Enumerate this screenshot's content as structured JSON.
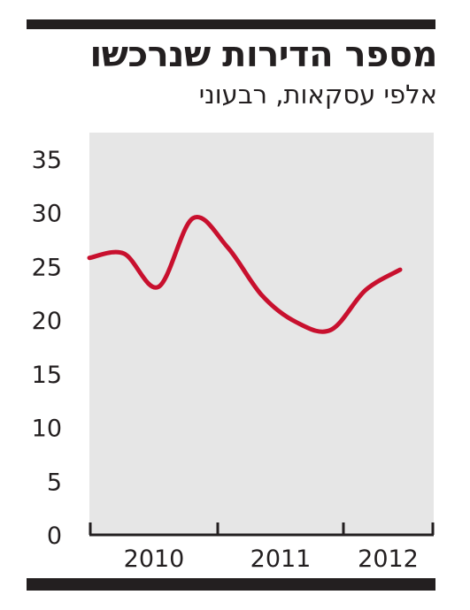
{
  "header": {
    "title": "מספר הדירות שנרכשו",
    "subtitle": "אלפי עסקאות, רבעוני"
  },
  "chart_data": {
    "type": "line",
    "title": "מספר הדירות שנרכשו",
    "subtitle": "אלפי עסקאות, רבעוני",
    "xlabel": "",
    "ylabel": "",
    "x_tick_labels": [
      "2010",
      "2011",
      "2012"
    ],
    "y_ticks": [
      0,
      5,
      10,
      15,
      20,
      25,
      30,
      35
    ],
    "ylim": [
      0,
      35
    ],
    "grid": false,
    "colors": {
      "plot_background": "#e6e6e6",
      "line": "#c8102e",
      "axis": "#231f20"
    },
    "series": [
      {
        "x": [
          "2010 Q1",
          "2010 Q2",
          "2010 Q3",
          "2010 Q4",
          "2011 Q1",
          "2011 Q2",
          "2011 Q3",
          "2011 Q4",
          "2012 Q1",
          "2012 Q2"
        ],
        "values": [
          25.8,
          26.2,
          23.1,
          29.5,
          26.8,
          22.3,
          19.8,
          19.1,
          22.8,
          24.7
        ]
      }
    ]
  }
}
